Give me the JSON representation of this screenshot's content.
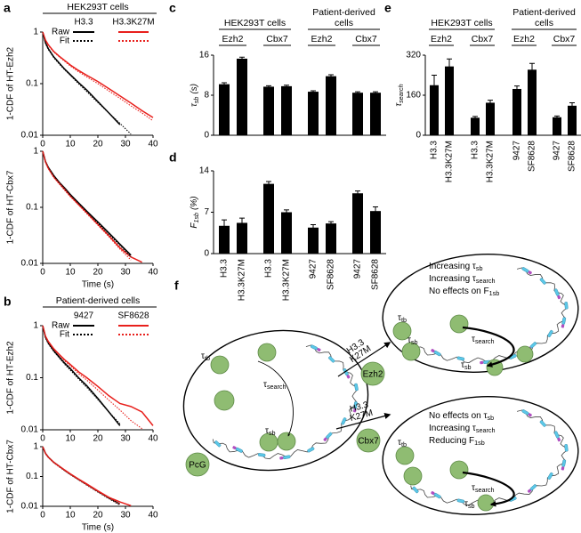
{
  "chart_data": [
    {
      "type": "line",
      "panel": "a",
      "header": "HEK293T cells",
      "ylabel": "1-CDF of HT-Ezh2",
      "log": true,
      "x": [
        0,
        1,
        2,
        4,
        6,
        8,
        10,
        13,
        16,
        20,
        24,
        28,
        32,
        36,
        40
      ],
      "xlim": [
        0,
        40
      ],
      "xticks": [
        0,
        10,
        20,
        30,
        40
      ],
      "ylim": [
        0.01,
        1
      ],
      "yticks": [
        0.01,
        0.1,
        1
      ],
      "legend": {
        "columns": [
          "H3.3",
          "H3.3K27M"
        ],
        "rows": [
          "Raw",
          "Fit"
        ]
      },
      "series": [
        {
          "color": "#000000",
          "dashed": false,
          "values": [
            1,
            0.62,
            0.48,
            0.33,
            0.25,
            0.19,
            0.15,
            0.105,
            0.075,
            0.045,
            0.027,
            0.016,
            null,
            null,
            null
          ]
        },
        {
          "color": "#e8201c",
          "dashed": false,
          "values": [
            1,
            0.7,
            0.57,
            0.42,
            0.34,
            0.28,
            0.23,
            0.18,
            0.145,
            0.11,
            0.08,
            0.058,
            0.042,
            0.03,
            0.022
          ]
        },
        {
          "color": "#000000",
          "dashed": true,
          "values": [
            1,
            0.6,
            0.46,
            0.32,
            0.24,
            0.185,
            0.145,
            0.1,
            0.07,
            0.043,
            0.027,
            0.017,
            0.0105,
            null,
            null
          ]
        },
        {
          "color": "#e8201c",
          "dashed": true,
          "values": [
            1,
            0.68,
            0.55,
            0.41,
            0.33,
            0.27,
            0.22,
            0.17,
            0.135,
            0.1,
            0.072,
            0.052,
            0.037,
            0.027,
            0.019
          ]
        }
      ]
    },
    {
      "type": "line",
      "ylabel": "1-CDF of HT-Cbx7",
      "xlabel": "Time (s)",
      "log": true,
      "x": [
        0,
        1,
        2,
        4,
        6,
        8,
        10,
        13,
        16,
        20,
        24,
        28,
        32,
        36,
        40
      ],
      "xlim": [
        0,
        40
      ],
      "xticks": [
        0,
        10,
        20,
        30,
        40
      ],
      "ylim": [
        0.01,
        1
      ],
      "yticks": [
        0.01,
        0.1,
        1
      ],
      "series": [
        {
          "color": "#000000",
          "dashed": false,
          "values": [
            1,
            0.66,
            0.52,
            0.37,
            0.28,
            0.22,
            0.17,
            0.12,
            0.085,
            0.055,
            0.035,
            0.022,
            0.014,
            null,
            null
          ]
        },
        {
          "color": "#e8201c",
          "dashed": false,
          "values": [
            1,
            0.65,
            0.5,
            0.35,
            0.27,
            0.21,
            0.16,
            0.112,
            0.08,
            0.05,
            0.031,
            0.019,
            0.013,
            0.0105,
            null
          ]
        },
        {
          "color": "#000000",
          "dashed": true,
          "values": [
            1,
            0.64,
            0.5,
            0.36,
            0.27,
            0.21,
            0.165,
            0.118,
            0.083,
            0.052,
            0.033,
            0.021,
            0.013,
            null,
            null
          ]
        },
        {
          "color": "#e8201c",
          "dashed": true,
          "values": [
            1,
            0.63,
            0.49,
            0.34,
            0.26,
            0.2,
            0.155,
            0.11,
            0.077,
            0.048,
            0.03,
            0.018,
            0.0115,
            null,
            null
          ]
        }
      ]
    },
    {
      "type": "line",
      "panel": "b",
      "header": "Patient-derived cells",
      "ylabel": "1-CDF of HT-Ezh2",
      "log": true,
      "x": [
        0,
        1,
        2,
        4,
        6,
        8,
        10,
        13,
        16,
        20,
        24,
        28,
        32,
        36,
        40
      ],
      "xlim": [
        0,
        40
      ],
      "xticks": [
        0,
        10,
        20,
        30,
        40
      ],
      "ylim": [
        0.01,
        1
      ],
      "yticks": [
        0.01,
        0.1,
        1
      ],
      "legend": {
        "columns": [
          "9427",
          "SF8628"
        ],
        "rows": [
          "Raw",
          "Fit"
        ]
      },
      "series": [
        {
          "color": "#000000",
          "dashed": false,
          "values": [
            1,
            0.6,
            0.47,
            0.33,
            0.25,
            0.19,
            0.15,
            0.1,
            0.07,
            0.04,
            0.022,
            0.012,
            null,
            null,
            null
          ]
        },
        {
          "color": "#e8201c",
          "dashed": false,
          "values": [
            1,
            0.63,
            0.5,
            0.36,
            0.28,
            0.22,
            0.18,
            0.13,
            0.1,
            0.068,
            0.045,
            0.032,
            0.028,
            0.022,
            0.012
          ]
        },
        {
          "color": "#000000",
          "dashed": true,
          "values": [
            1,
            0.58,
            0.45,
            0.32,
            0.24,
            0.18,
            0.14,
            0.095,
            0.065,
            0.038,
            0.022,
            0.013,
            null,
            null,
            null
          ]
        },
        {
          "color": "#e8201c",
          "dashed": true,
          "values": [
            1,
            0.62,
            0.49,
            0.35,
            0.27,
            0.21,
            0.17,
            0.12,
            0.09,
            0.058,
            0.037,
            0.024,
            0.015,
            0.0105,
            null
          ]
        }
      ]
    },
    {
      "type": "line",
      "ylabel": "1-CDF of HT-Cbx7",
      "xlabel": "Time (s)",
      "log": true,
      "x": [
        0,
        1,
        2,
        4,
        6,
        8,
        10,
        13,
        16,
        20,
        24,
        28,
        32,
        36,
        40
      ],
      "xlim": [
        0,
        40
      ],
      "xticks": [
        0,
        10,
        20,
        30,
        40
      ],
      "ylim": [
        0.01,
        1
      ],
      "yticks": [
        0.01,
        0.1,
        1
      ],
      "series": [
        {
          "color": "#000000",
          "dashed": false,
          "values": [
            1,
            0.6,
            0.45,
            0.3,
            0.22,
            0.16,
            0.12,
            0.08,
            0.054,
            0.032,
            0.019,
            0.012,
            null,
            null,
            null
          ]
        },
        {
          "color": "#e8201c",
          "dashed": false,
          "values": [
            1,
            0.6,
            0.45,
            0.3,
            0.22,
            0.165,
            0.123,
            0.082,
            0.056,
            0.033,
            0.02,
            0.014,
            0.0105,
            null,
            null
          ]
        },
        {
          "color": "#000000",
          "dashed": true,
          "values": [
            1,
            0.58,
            0.44,
            0.29,
            0.21,
            0.155,
            0.115,
            0.077,
            0.051,
            0.03,
            0.018,
            0.011,
            null,
            null,
            null
          ]
        },
        {
          "color": "#e8201c",
          "dashed": true,
          "values": [
            1,
            0.58,
            0.44,
            0.29,
            0.21,
            0.157,
            0.117,
            0.078,
            0.052,
            0.031,
            0.019,
            0.012,
            null,
            null,
            null
          ]
        }
      ]
    },
    {
      "type": "bar",
      "panel": "c",
      "ylabel": {
        "main": "τ",
        "sub": "sb",
        "unit": "(s)"
      },
      "color": "#000000",
      "groups": [
        {
          "name": [
            "HEK293T cells"
          ],
          "subgroups": [
            "Ezh2",
            "Cbx7"
          ]
        },
        {
          "name": [
            "Patient-derived",
            "cells"
          ],
          "subgroups": [
            "Ezh2",
            "Cbx7"
          ]
        }
      ],
      "values": [
        10.2,
        15.3,
        9.7,
        9.8,
        8.7,
        11.8,
        8.5,
        8.5
      ],
      "errors": [
        0.3,
        0.3,
        0.2,
        0.2,
        0.2,
        0.3,
        0.2,
        0.2
      ],
      "ylim": [
        0,
        16
      ],
      "yticks": [
        0,
        8,
        16
      ]
    },
    {
      "type": "bar",
      "panel": "d",
      "ylabel": {
        "main": "F",
        "sub": "1sb",
        "unit": "(%)"
      },
      "color": "#000000",
      "categories": [
        "H3.3",
        "H3.3K27M",
        "H3.3",
        "H3.3K27M",
        "9427",
        "SF8628",
        "9427",
        "SF8628"
      ],
      "values": [
        4.7,
        5.2,
        11.8,
        7.0,
        4.4,
        5.1,
        10.2,
        7.2
      ],
      "errors": [
        1.0,
        0.8,
        0.4,
        0.4,
        0.5,
        0.3,
        0.4,
        0.7
      ],
      "ylim": [
        0,
        14
      ],
      "yticks": [
        0,
        7,
        14
      ]
    },
    {
      "type": "bar",
      "panel": "e",
      "ylabel": {
        "main": "τ",
        "sub": "search"
      },
      "color": "#000000",
      "groups": [
        {
          "name": [
            "HEK293T cells"
          ],
          "subgroups": [
            "Ezh2",
            "Cbx7"
          ]
        },
        {
          "name": [
            "Patient-derived",
            "cells"
          ],
          "subgroups": [
            "Ezh2",
            "Cbx7"
          ]
        }
      ],
      "categories": [
        "H3.3",
        "H3.3K27M",
        "H3.3",
        "H3.3K27M",
        "9427",
        "SF8628",
        "9427",
        "SF8628"
      ],
      "values": [
        200,
        275,
        70,
        130,
        185,
        262,
        72,
        118
      ],
      "errors": [
        40,
        30,
        5,
        10,
        12,
        25,
        5,
        12
      ],
      "ylim": [
        0,
        320
      ],
      "yticks": [
        0,
        160,
        320
      ]
    }
  ],
  "diagram": {
    "panel": "f",
    "initial": {
      "protein": "PcG",
      "labels": [
        {
          "main": "τ",
          "sub": "tb"
        },
        {
          "main": "τ",
          "sub": "search"
        },
        {
          "main": "τ",
          "sub": "sb"
        }
      ]
    },
    "outcomes": [
      {
        "treatment": [
          "H3.3",
          "K27M"
        ],
        "protein": "Ezh2",
        "effects": [
          {
            "main": "Increasing τ",
            "sub": "sb"
          },
          {
            "main": "Increasing τ",
            "sub": "search"
          },
          {
            "main": "No effects on F",
            "sub": "1sb"
          }
        ],
        "labels": [
          {
            "main": "τ",
            "sub": "tb"
          },
          {
            "main": "τ",
            "sub": "sb"
          },
          {
            "main": "τ",
            "sub": "search"
          },
          {
            "main": "τ",
            "sub": "sb"
          }
        ]
      },
      {
        "treatment": [
          "H3.3",
          "K27M"
        ],
        "protein": "Cbx7",
        "effects": [
          {
            "main": "No effects on τ",
            "sub": "sb"
          },
          {
            "main": "Increasing τ",
            "sub": "search"
          },
          {
            "main": "Reducing F",
            "sub": "1sb"
          }
        ],
        "labels": [
          {
            "main": "τ",
            "sub": "tb"
          },
          {
            "main": "τ",
            "sub": "search"
          },
          {
            "main": "τ",
            "sub": "sb"
          }
        ]
      }
    ]
  }
}
